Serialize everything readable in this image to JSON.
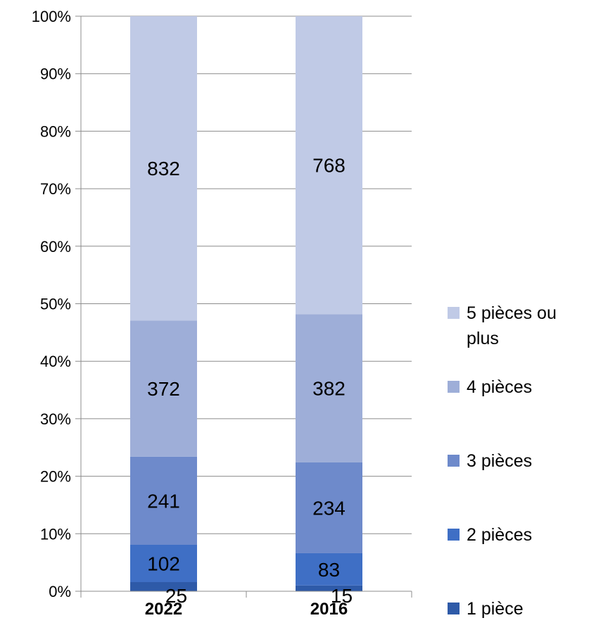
{
  "chart_data": {
    "type": "bar",
    "stacked": "percent",
    "categories": [
      "2022",
      "2016"
    ],
    "series": [
      {
        "name": "1 pièce",
        "values": [
          25,
          15
        ],
        "color": "#2E5AA8"
      },
      {
        "name": "2 pièces",
        "values": [
          102,
          83
        ],
        "color": "#3F6FC5"
      },
      {
        "name": "3 pièces",
        "values": [
          241,
          234
        ],
        "color": "#6E8ACB"
      },
      {
        "name": "4 pièces",
        "values": [
          372,
          382
        ],
        "color": "#9EAED8"
      },
      {
        "name": "5 pièces ou plus",
        "values": [
          832,
          768
        ],
        "color": "#C0CAE6"
      }
    ],
    "yticks": [
      "0%",
      "10%",
      "20%",
      "30%",
      "40%",
      "50%",
      "60%",
      "70%",
      "80%",
      "90%",
      "100%"
    ],
    "ylim": [
      0,
      100
    ],
    "grid": true,
    "legend_position": "right"
  }
}
